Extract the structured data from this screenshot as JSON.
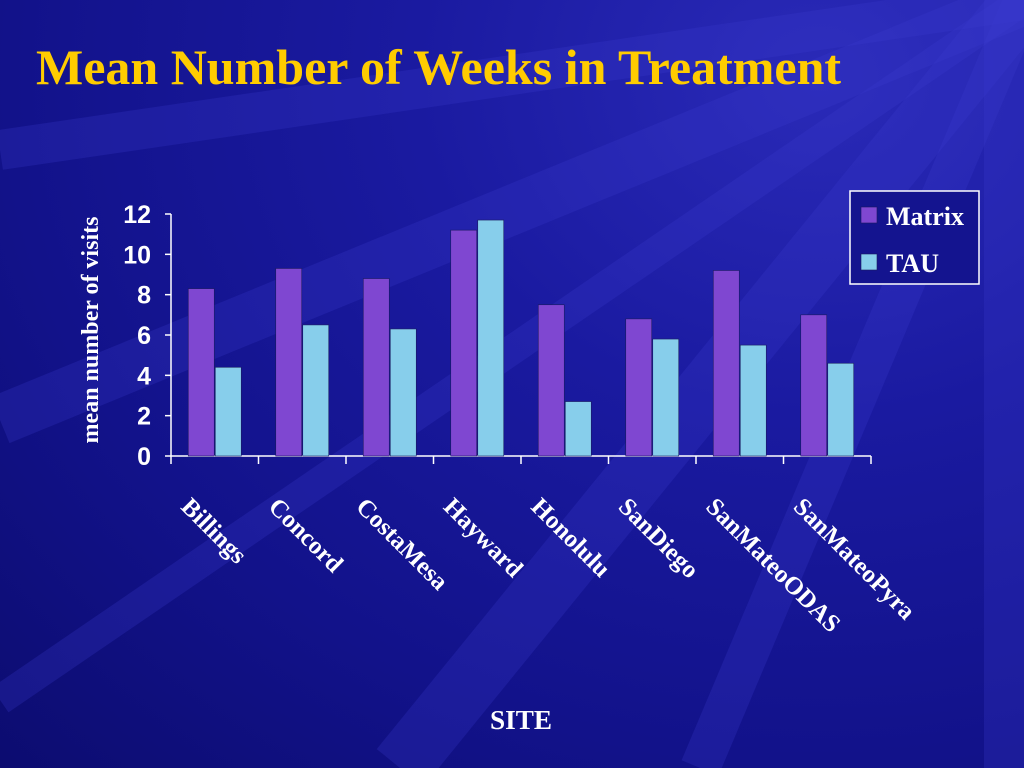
{
  "slide": {
    "title": "Mean Number of Weeks in Treatment"
  },
  "colors": {
    "background": "#14148f",
    "title": "#ffcc00",
    "text": "#ffffff",
    "matrix": "#7f47d1",
    "tau": "#87ceeb",
    "legend_bg": "#14148f",
    "axis": "#ffffff"
  },
  "chart_data": {
    "type": "bar",
    "xlabel": "SITE",
    "ylabel": "mean number of visits",
    "ylim": [
      0,
      12
    ],
    "yticks": [
      0,
      2,
      4,
      6,
      8,
      10,
      12
    ],
    "grid": false,
    "legend_position": "top-right",
    "categories": [
      "Billings",
      "Concord",
      "CostaMesa",
      "Hayward",
      "Honolulu",
      "SanDiego",
      "SanMateoODAS",
      "SanMateoPyra"
    ],
    "series": [
      {
        "name": "Matrix",
        "values": [
          8.3,
          9.3,
          8.8,
          11.2,
          7.5,
          6.8,
          9.2,
          7.0
        ]
      },
      {
        "name": "TAU",
        "values": [
          4.4,
          6.5,
          6.3,
          11.7,
          2.7,
          5.8,
          5.5,
          4.6
        ]
      }
    ]
  }
}
